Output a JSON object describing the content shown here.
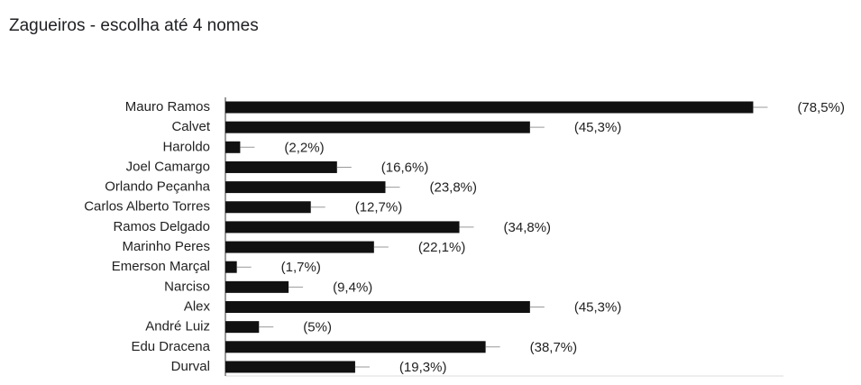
{
  "chart_data": {
    "type": "hbar",
    "title": "Zagueiros - escolha até 4 nomes",
    "categories": [
      "Mauro Ramos",
      "Calvet",
      "Haroldo",
      "Joel Camargo",
      "Orlando Peçanha",
      "Carlos Alberto Torres",
      "Ramos Delgado",
      "Marinho Peres",
      "Emerson Marçal",
      "Narciso",
      "Alex",
      "André Luiz",
      "Edu Dracena",
      "Durval"
    ],
    "values": [
      78.5,
      45.3,
      2.2,
      16.6,
      23.8,
      12.7,
      34.8,
      22.1,
      1.7,
      9.4,
      45.3,
      5,
      38.7,
      19.3
    ],
    "value_labels": [
      "(78,5%)",
      "(45,3%)",
      "(2,2%)",
      "(16,6%)",
      "(23,8%)",
      "(12,7%)",
      "(34,8%)",
      "(22,1%)",
      "(1,7%)",
      "(9,4%)",
      "(45,3%)",
      "(5%)",
      "(38,7%)",
      "(19,3%)"
    ],
    "color": "#111111",
    "xlim": [
      0,
      83
    ]
  }
}
